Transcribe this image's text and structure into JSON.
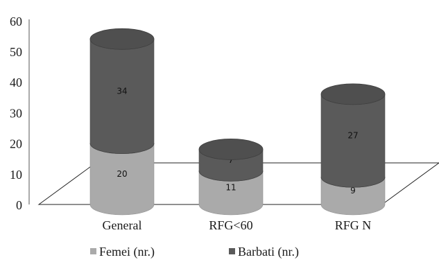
{
  "chart_data": {
    "type": "bar",
    "categories": [
      "General",
      "RFG<60",
      "RFG N"
    ],
    "series": [
      {
        "name": "Femei (nr.)",
        "values": [
          20,
          11,
          9
        ],
        "color": "#aaaaaa"
      },
      {
        "name": "Barbati (nr.)",
        "values": [
          34,
          7,
          27
        ],
        "color": "#5a5a5a"
      }
    ],
    "yticks": [
      "0",
      "10",
      "20",
      "30",
      "40",
      "50",
      "60"
    ],
    "ylim": [
      0,
      60
    ],
    "stacked": true,
    "shape": "cylinder",
    "grid": false,
    "legend_position": "bottom",
    "title": "",
    "xlabel": "",
    "ylabel": ""
  }
}
